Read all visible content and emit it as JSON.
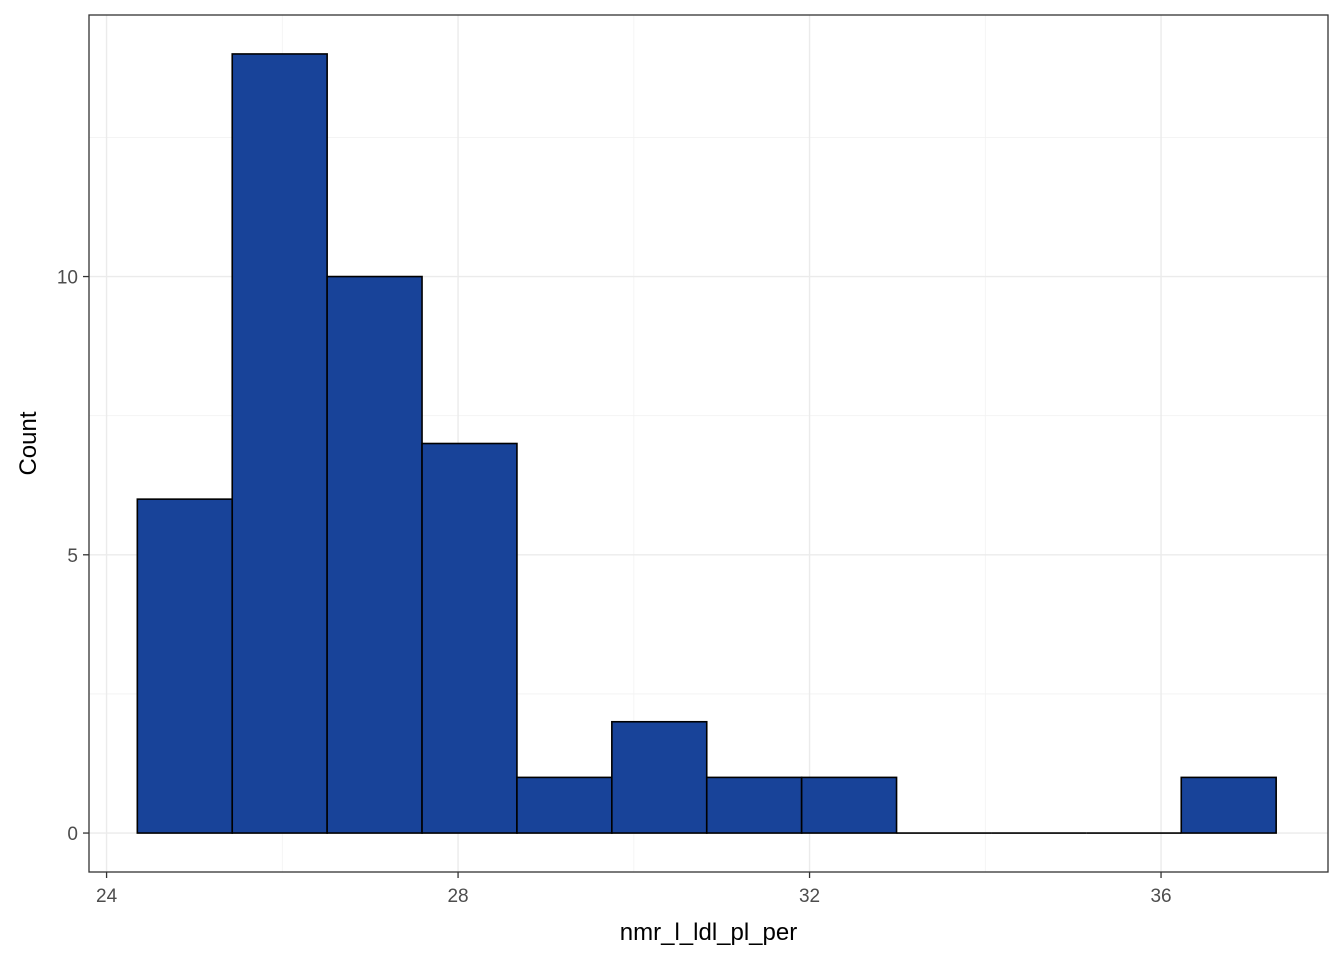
{
  "chart_data": {
    "type": "bar",
    "subtype": "histogram",
    "title": "",
    "xlabel": "nmr_l_ldl_pl_per",
    "ylabel": "Count",
    "bin_edges": [
      24.35,
      25.43,
      26.51,
      27.59,
      28.67,
      29.75,
      30.83,
      31.91,
      32.99,
      34.07,
      35.15,
      36.23,
      37.31
    ],
    "values": [
      6,
      14,
      10,
      7,
      1,
      2,
      1,
      1,
      0,
      0,
      0,
      1
    ],
    "xlim": [
      23.8,
      37.9
    ],
    "ylim": [
      -0.7,
      14.7
    ],
    "x_ticks": [
      24,
      28,
      32,
      36
    ],
    "x_tick_labels": [
      "24",
      "28",
      "32",
      "36"
    ],
    "y_ticks": [
      0,
      5,
      10
    ],
    "y_tick_labels": [
      "0",
      "5",
      "10"
    ],
    "grid": true,
    "legend": "none",
    "colors": {
      "bar_fill": "#184399",
      "bar_outline": "#000000",
      "grid": "#ebebeb",
      "panel_border": "#333333"
    }
  }
}
